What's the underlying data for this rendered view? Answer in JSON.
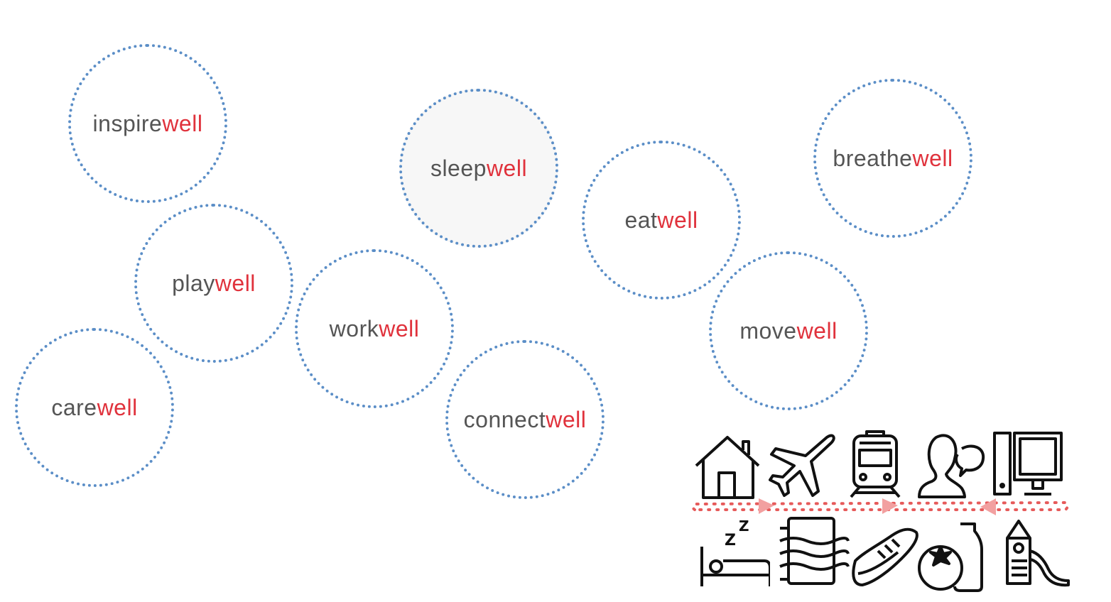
{
  "suffix_color": "#e0323c",
  "prefix_color": "#555555",
  "circle_color": "#5b8ec7",
  "bubbles": [
    {
      "id": "inspire",
      "prefix": "inspire",
      "suffix": "well"
    },
    {
      "id": "play",
      "prefix": "play",
      "suffix": "well"
    },
    {
      "id": "care",
      "prefix": "care",
      "suffix": "well"
    },
    {
      "id": "work",
      "prefix": "work",
      "suffix": "well"
    },
    {
      "id": "sleep",
      "prefix": "sleep",
      "suffix": "well",
      "active": true
    },
    {
      "id": "connect",
      "prefix": "connect",
      "suffix": "well"
    },
    {
      "id": "eat",
      "prefix": "eat",
      "suffix": "well"
    },
    {
      "id": "breathe",
      "prefix": "breathe",
      "suffix": "well"
    },
    {
      "id": "move",
      "prefix": "move",
      "suffix": "well"
    }
  ],
  "icons_top": [
    "house-icon",
    "airplane-icon",
    "train-icon",
    "person-speech-icon",
    "desktop-computer-icon"
  ],
  "icons_bottom": [
    "bed-sleep-icon",
    "air-filter-icon",
    "sneaker-icon",
    "tomato-bottle-icon",
    "playground-slide-icon"
  ],
  "timeline_color": "#e65a5a",
  "arrow_color": "#f2a0a0"
}
